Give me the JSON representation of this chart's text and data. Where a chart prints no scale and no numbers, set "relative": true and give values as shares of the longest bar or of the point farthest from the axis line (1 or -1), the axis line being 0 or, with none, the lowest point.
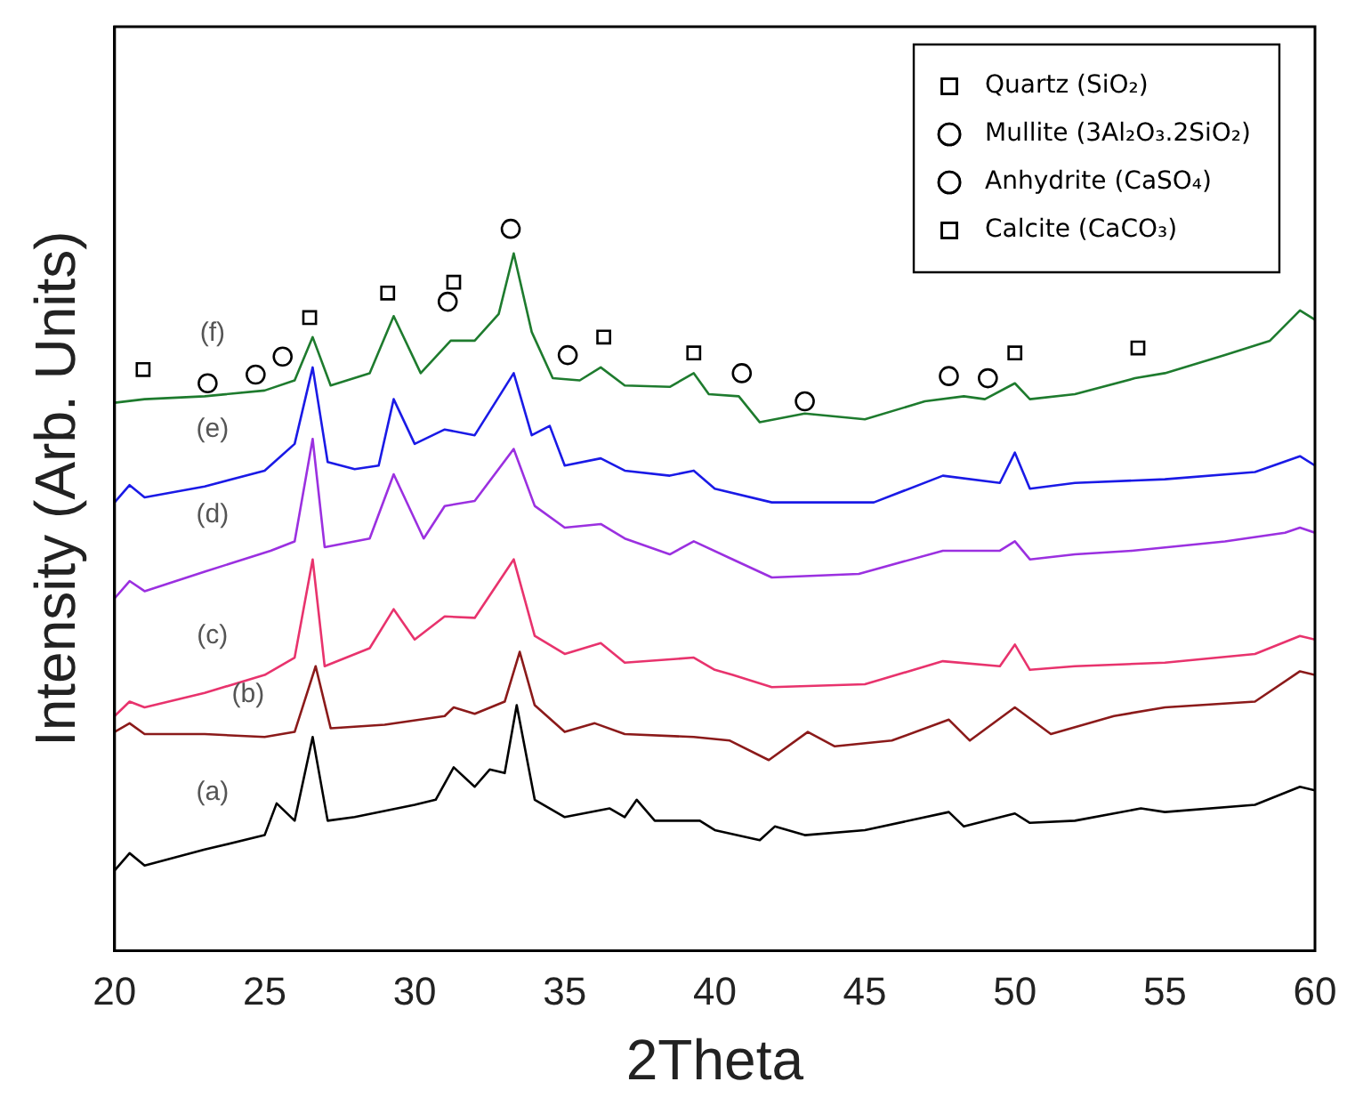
{
  "chart_data": {
    "type": "line",
    "relative": true,
    "xlabel": "2Theta",
    "ylabel": "Intensity (Arb. Units)",
    "xlim": [
      20,
      60
    ],
    "xticks": [
      20,
      25,
      30,
      35,
      40,
      45,
      50,
      55,
      60
    ],
    "grid": false,
    "legend": "top right",
    "series": [
      {
        "color": "#000000",
        "x": [
          20,
          20.5,
          21,
          23,
          25,
          25.4,
          26,
          26.6,
          27.1,
          28,
          30,
          30.7,
          31.3,
          32,
          32.5,
          33,
          33.4,
          34,
          35,
          36.5,
          37,
          37.4,
          38,
          39.5,
          40,
          41.5,
          42,
          43,
          45,
          47.8,
          48.3,
          50,
          50.5,
          52,
          54.2,
          55,
          58,
          59.5,
          60
        ],
        "values": [
          0.111,
          0.135,
          0.118,
          0.14,
          0.16,
          0.204,
          0.18,
          0.296,
          0.18,
          0.185,
          0.202,
          0.209,
          0.254,
          0.227,
          0.251,
          0.246,
          0.34,
          0.209,
          0.185,
          0.197,
          0.185,
          0.209,
          0.18,
          0.18,
          0.167,
          0.153,
          0.172,
          0.16,
          0.167,
          0.192,
          0.172,
          0.19,
          0.177,
          0.18,
          0.197,
          0.192,
          0.202,
          0.227,
          0.222
        ]
      },
      {
        "color": "#8b1a1a",
        "x": [
          20,
          20.5,
          21,
          23,
          25,
          26,
          26.7,
          27.2,
          29,
          31,
          31.3,
          32,
          33,
          33.5,
          34,
          35,
          36,
          37,
          39.3,
          40.5,
          41.8,
          43.1,
          44,
          45.9,
          47.8,
          48.5,
          50,
          51.2,
          53.3,
          55,
          58,
          59.5,
          60
        ],
        "values": [
          0.303,
          0.315,
          0.3,
          0.3,
          0.296,
          0.303,
          0.394,
          0.308,
          0.313,
          0.325,
          0.337,
          0.328,
          0.345,
          0.414,
          0.34,
          0.303,
          0.315,
          0.3,
          0.296,
          0.291,
          0.264,
          0.303,
          0.283,
          0.291,
          0.32,
          0.291,
          0.337,
          0.3,
          0.325,
          0.337,
          0.345,
          0.387,
          0.382
        ]
      },
      {
        "color": "#e8336d",
        "x": [
          20,
          20.5,
          21,
          23,
          25,
          26,
          26.6,
          27,
          28.5,
          29.3,
          30,
          31,
          32,
          33.3,
          34,
          35,
          36.2,
          37,
          39.3,
          40,
          40.6,
          41.9,
          45,
          47.6,
          49.5,
          50,
          50.5,
          52,
          55,
          58,
          59.5,
          60
        ],
        "values": [
          0.325,
          0.345,
          0.337,
          0.357,
          0.382,
          0.406,
          0.542,
          0.394,
          0.419,
          0.473,
          0.431,
          0.463,
          0.461,
          0.542,
          0.436,
          0.411,
          0.426,
          0.399,
          0.406,
          0.389,
          0.382,
          0.365,
          0.369,
          0.401,
          0.394,
          0.424,
          0.389,
          0.394,
          0.399,
          0.411,
          0.436,
          0.431
        ]
      },
      {
        "color": "#9b30e0",
        "x": [
          20,
          20.5,
          21,
          23,
          25.2,
          26,
          26.6,
          27,
          28.5,
          29.3,
          30.3,
          31,
          32,
          33.3,
          34,
          35,
          36.2,
          37,
          38.5,
          39.3,
          40.6,
          41.9,
          44.8,
          47.6,
          49.5,
          50,
          50.5,
          52,
          53.9,
          57,
          59,
          59.5,
          60
        ],
        "values": [
          0.488,
          0.512,
          0.498,
          0.525,
          0.554,
          0.567,
          0.709,
          0.559,
          0.571,
          0.66,
          0.571,
          0.616,
          0.623,
          0.695,
          0.616,
          0.586,
          0.591,
          0.571,
          0.549,
          0.567,
          0.542,
          0.517,
          0.522,
          0.554,
          0.554,
          0.567,
          0.542,
          0.549,
          0.554,
          0.567,
          0.579,
          0.586,
          0.579
        ]
      },
      {
        "color": "#1a1ae6",
        "x": [
          20,
          20.5,
          21,
          23,
          25,
          26,
          26.6,
          27.1,
          28,
          28.8,
          29.3,
          30,
          31,
          32,
          33.3,
          33.9,
          34.5,
          35,
          36.2,
          37,
          38.5,
          39.3,
          40,
          41.9,
          43,
          45.3,
          47.6,
          49.5,
          50,
          50.5,
          52,
          55,
          58,
          59.5,
          60
        ],
        "values": [
          0.621,
          0.645,
          0.628,
          0.643,
          0.665,
          0.702,
          0.808,
          0.677,
          0.667,
          0.672,
          0.764,
          0.702,
          0.722,
          0.714,
          0.8,
          0.714,
          0.727,
          0.672,
          0.682,
          0.665,
          0.658,
          0.665,
          0.64,
          0.621,
          0.621,
          0.621,
          0.658,
          0.648,
          0.69,
          0.64,
          0.648,
          0.653,
          0.663,
          0.685,
          0.672
        ]
      },
      {
        "color": "#1e7b2e",
        "x": [
          20,
          21,
          23,
          25,
          26,
          26.6,
          27.2,
          28.5,
          29.3,
          30.2,
          31.2,
          32,
          32.8,
          33.3,
          33.9,
          34.6,
          35.5,
          36.2,
          37,
          38.5,
          39.3,
          39.8,
          40.8,
          41.5,
          43,
          45,
          47,
          48.3,
          49,
          50,
          50.5,
          52,
          54,
          55,
          57,
          58.5,
          59.5,
          60
        ],
        "values": [
          0.759,
          0.764,
          0.768,
          0.776,
          0.79,
          0.85,
          0.783,
          0.8,
          0.879,
          0.8,
          0.845,
          0.845,
          0.882,
          0.966,
          0.857,
          0.793,
          0.79,
          0.808,
          0.783,
          0.781,
          0.8,
          0.771,
          0.768,
          0.732,
          0.744,
          0.736,
          0.761,
          0.768,
          0.764,
          0.786,
          0.764,
          0.771,
          0.793,
          0.8,
          0.825,
          0.845,
          0.887,
          0.874
        ]
      },
      {
        "type": "scatter",
        "name": "Quartz (SiO₂)",
        "marker": "square",
        "color": "#000000",
        "x": [
          20.95,
          26.5,
          36.3,
          39.3,
          50.0,
          54.1
        ],
        "values": [
          0.805,
          0.877,
          0.85,
          0.828,
          0.828,
          0.835
        ]
      },
      {
        "type": "scatter",
        "name": "Mullite (3Al₂O₃.2SiO₂)",
        "marker": "circle",
        "color": "#000000",
        "x": [
          25.6,
          31.1,
          33.2,
          35.1,
          40.9,
          43.0,
          47.8,
          49.1
        ],
        "values": [
          0.823,
          0.899,
          1,
          0.825,
          0.8,
          0.761,
          0.796,
          0.793
        ]
      },
      {
        "type": "scatter",
        "name": "Anhydrite (CaSO₄)",
        "marker": "circle",
        "color": "#000000",
        "x": [
          23.1,
          24.7
        ],
        "values": [
          0.786,
          0.798
        ]
      },
      {
        "type": "scatter",
        "name": "Calcite (CaCO₃)",
        "marker": "square",
        "color": "#000000",
        "x": [
          29.1,
          31.3
        ],
        "values": [
          0.911,
          0.926
        ]
      }
    ],
    "annotations": [
      "(a)",
      "(b)",
      "(c)",
      "(d)",
      "(e)",
      "(f)"
    ]
  }
}
